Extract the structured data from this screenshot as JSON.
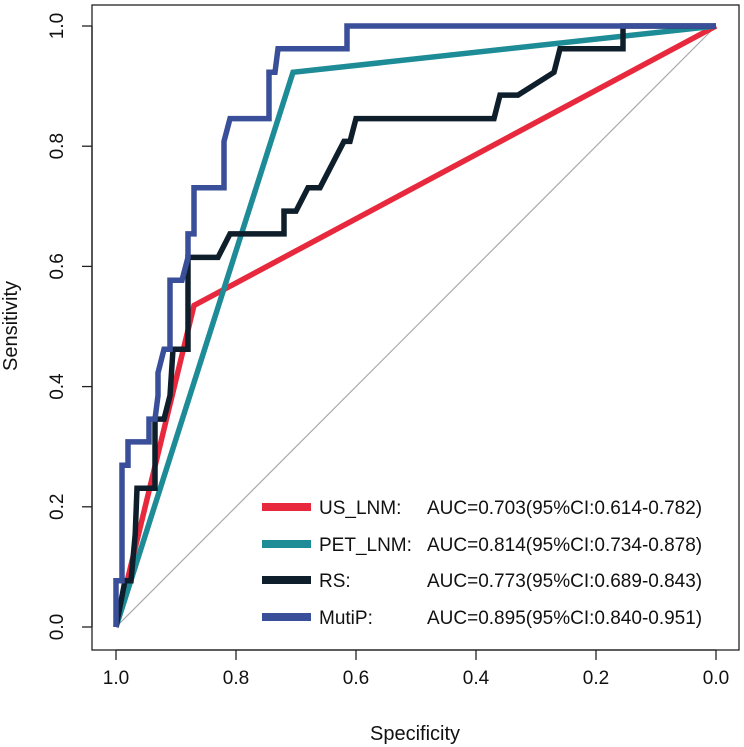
{
  "chart_data": {
    "type": "line",
    "title": "",
    "xlabel": "Specificity",
    "ylabel": "Sensitivity",
    "xlim": [
      1.0,
      0.0
    ],
    "ylim": [
      0.0,
      1.0
    ],
    "x_ticks": [
      "1.0",
      "0.8",
      "0.6",
      "0.4",
      "0.2",
      "0.0"
    ],
    "y_ticks": [
      "0.0",
      "0.2",
      "0.4",
      "0.6",
      "0.8",
      "1.0"
    ],
    "reference_line": {
      "from": [
        1.0,
        0.0
      ],
      "to": [
        0.0,
        1.0
      ],
      "color": "#aaaaaa"
    },
    "legend_position": "bottom-right",
    "series": [
      {
        "name": "US_LNM:",
        "auc_text": "AUC=0.703(95%CI:0.614-0.782)",
        "color": "#e8283c",
        "points": [
          [
            1.0,
            0.0
          ],
          [
            0.87,
            0.535
          ],
          [
            0.0,
            1.0
          ]
        ]
      },
      {
        "name": "PET_LNM:",
        "auc_text": "AUC=0.814(95%CI:0.734-0.878)",
        "color": "#1e8c96",
        "points": [
          [
            1.0,
            0.0
          ],
          [
            0.705,
            0.923
          ],
          [
            0.0,
            1.0
          ]
        ]
      },
      {
        "name": "RS:",
        "auc_text": "AUC=0.773(95%CI:0.689-0.843)",
        "color": "#0f1e2b",
        "points": [
          [
            1.0,
            0.0
          ],
          [
            0.985,
            0.077
          ],
          [
            0.975,
            0.077
          ],
          [
            0.968,
            0.154
          ],
          [
            0.965,
            0.231
          ],
          [
            0.935,
            0.231
          ],
          [
            0.935,
            0.346
          ],
          [
            0.92,
            0.346
          ],
          [
            0.91,
            0.385
          ],
          [
            0.905,
            0.462
          ],
          [
            0.88,
            0.462
          ],
          [
            0.88,
            0.615
          ],
          [
            0.83,
            0.615
          ],
          [
            0.81,
            0.654
          ],
          [
            0.72,
            0.654
          ],
          [
            0.72,
            0.692
          ],
          [
            0.7,
            0.692
          ],
          [
            0.68,
            0.731
          ],
          [
            0.66,
            0.731
          ],
          [
            0.62,
            0.808
          ],
          [
            0.61,
            0.808
          ],
          [
            0.6,
            0.846
          ],
          [
            0.37,
            0.846
          ],
          [
            0.36,
            0.885
          ],
          [
            0.33,
            0.885
          ],
          [
            0.27,
            0.923
          ],
          [
            0.26,
            0.962
          ],
          [
            0.155,
            0.962
          ],
          [
            0.155,
            1.0
          ],
          [
            0.0,
            1.0
          ]
        ]
      },
      {
        "name": "MutiP:",
        "auc_text": "AUC=0.895(95%CI:0.840-0.951)",
        "color": "#3a4f9a",
        "points": [
          [
            1.0,
            0.0
          ],
          [
            1.0,
            0.077
          ],
          [
            0.99,
            0.077
          ],
          [
            0.99,
            0.269
          ],
          [
            0.98,
            0.269
          ],
          [
            0.98,
            0.308
          ],
          [
            0.945,
            0.308
          ],
          [
            0.945,
            0.346
          ],
          [
            0.935,
            0.346
          ],
          [
            0.93,
            0.385
          ],
          [
            0.93,
            0.423
          ],
          [
            0.92,
            0.462
          ],
          [
            0.91,
            0.462
          ],
          [
            0.91,
            0.577
          ],
          [
            0.89,
            0.577
          ],
          [
            0.88,
            0.615
          ],
          [
            0.88,
            0.654
          ],
          [
            0.87,
            0.654
          ],
          [
            0.87,
            0.731
          ],
          [
            0.82,
            0.731
          ],
          [
            0.82,
            0.808
          ],
          [
            0.81,
            0.846
          ],
          [
            0.745,
            0.846
          ],
          [
            0.745,
            0.923
          ],
          [
            0.735,
            0.923
          ],
          [
            0.73,
            0.962
          ],
          [
            0.615,
            0.962
          ],
          [
            0.615,
            1.0
          ],
          [
            0.0,
            1.0
          ]
        ]
      }
    ]
  }
}
